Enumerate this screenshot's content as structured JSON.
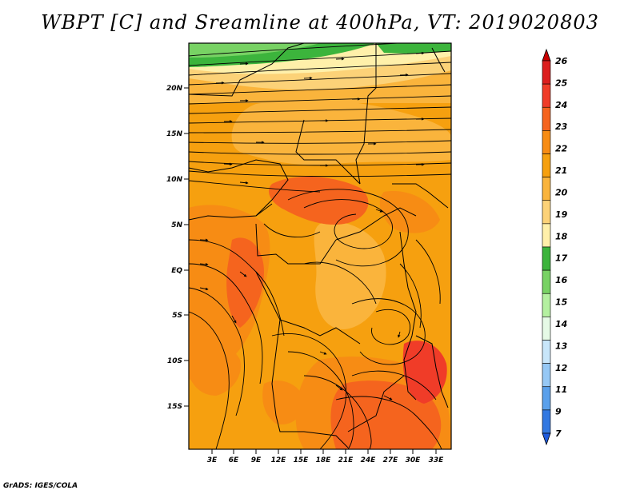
{
  "title": "WBPT [C] and Sreamline at 400hPa, VT: 2019020803",
  "footer": "GrADS: IGES/COLA",
  "lat_labels": [
    "20N",
    "15N",
    "10N",
    "5N",
    "EQ",
    "5S",
    "10S",
    "15S"
  ],
  "lon_labels": [
    "3E",
    "6E",
    "9E",
    "12E",
    "15E",
    "18E",
    "21E",
    "24E",
    "27E",
    "30E",
    "33E"
  ],
  "colorbar": {
    "levels": [
      "26",
      "25",
      "24",
      "23",
      "22",
      "21",
      "20",
      "19",
      "18",
      "17",
      "16",
      "15",
      "14",
      "13",
      "12",
      "11",
      "9",
      "7"
    ],
    "colors": [
      "#c80000",
      "#dc1e1e",
      "#f03c28",
      "#f5641e",
      "#f78c14",
      "#f6a00f",
      "#fab43c",
      "#fcd278",
      "#fff0aa",
      "#3cb43c",
      "#78d264",
      "#b4f0a0",
      "#e6fae6",
      "#c8e6fa",
      "#96c8f5",
      "#5aa0eb",
      "#3278e1",
      "#1e5adc"
    ]
  }
}
